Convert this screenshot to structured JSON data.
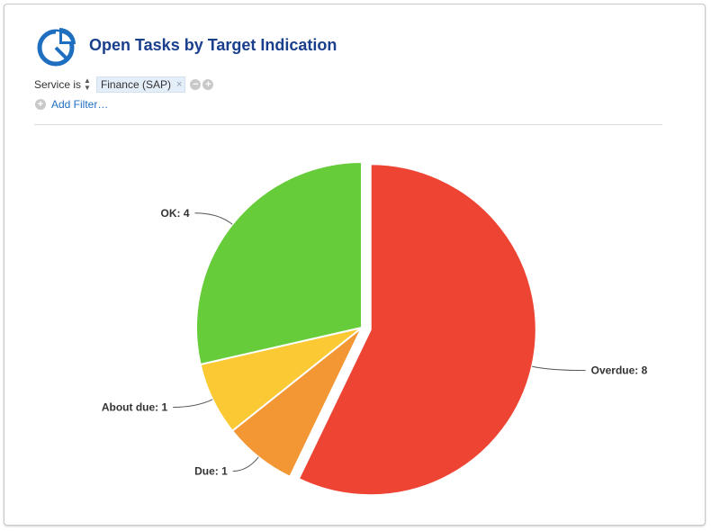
{
  "header": {
    "title": "Open Tasks by Target Indication",
    "icon": "pie-chart-icon",
    "accent": "#1f6fc0"
  },
  "filter": {
    "label": "Service is",
    "value": "Finance (SAP)",
    "remove_glyph": "×",
    "minus_glyph": "−",
    "plus_glyph": "+",
    "add_label": "Add Filter…"
  },
  "chart_data": {
    "type": "pie",
    "title": "",
    "slices": [
      {
        "label": "Overdue",
        "value": 8,
        "display": "Overdue: 8",
        "color": "#ee4433",
        "exploded": true
      },
      {
        "label": "Due",
        "value": 1,
        "display": "Due: 1",
        "color": "#f39734"
      },
      {
        "label": "About due",
        "value": 1,
        "display": "About due: 1",
        "color": "#fbc934"
      },
      {
        "label": "OK",
        "value": 4,
        "display": "OK: 4",
        "color": "#66cc39"
      }
    ]
  }
}
